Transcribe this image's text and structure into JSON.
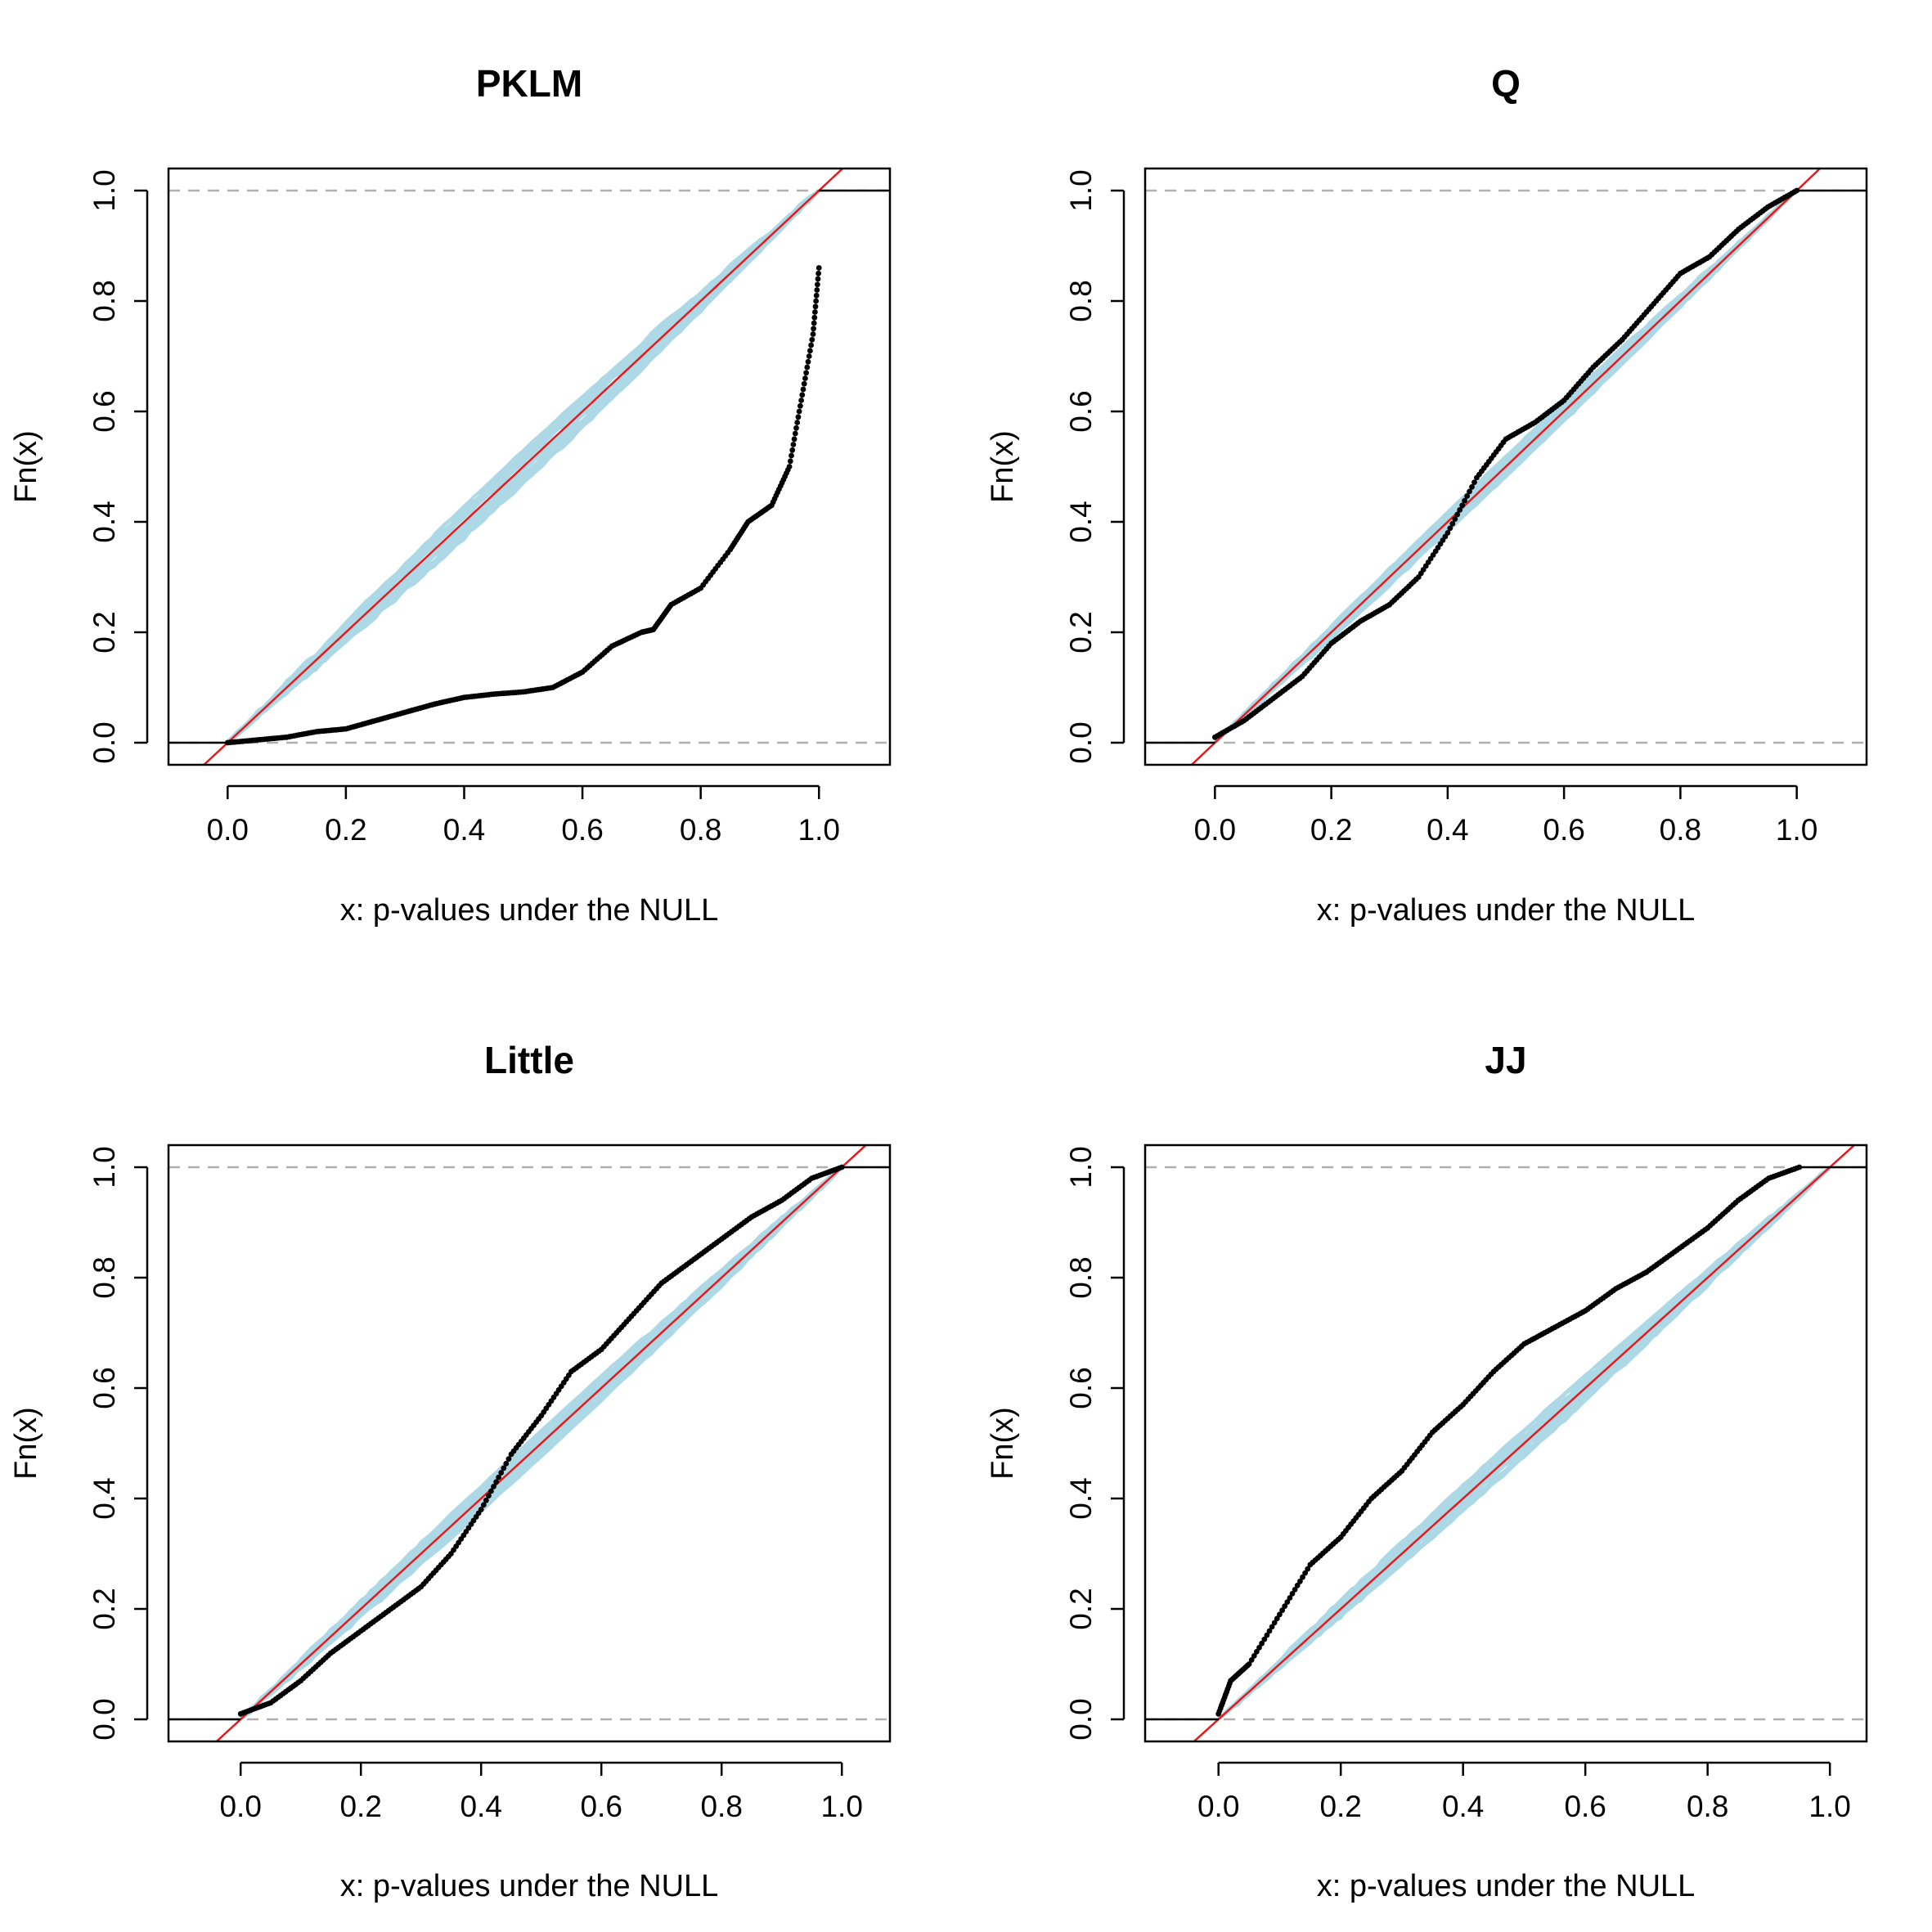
{
  "chart_data": [
    {
      "type": "scatter",
      "title": "PKLM",
      "xlabel": "x: p-values under the NULL",
      "ylabel": "Fn(x)",
      "xlim": [
        -0.1,
        1.12
      ],
      "ylim": [
        -0.04,
        1.04
      ],
      "xticks": [
        "0.0",
        "0.2",
        "0.4",
        "0.6",
        "0.8",
        "1.0"
      ],
      "yticks": [
        "0.0",
        "0.2",
        "0.4",
        "0.6",
        "0.8",
        "1.0"
      ],
      "reference_lines": [
        0,
        1
      ],
      "simulated_band_deviation": 0.03,
      "observed_ecdf": [
        [
          0.0,
          0.0
        ],
        [
          0.05,
          0.005
        ],
        [
          0.1,
          0.01
        ],
        [
          0.15,
          0.02
        ],
        [
          0.2,
          0.025
        ],
        [
          0.25,
          0.04
        ],
        [
          0.3,
          0.055
        ],
        [
          0.35,
          0.07
        ],
        [
          0.4,
          0.082
        ],
        [
          0.45,
          0.088
        ],
        [
          0.5,
          0.092
        ],
        [
          0.55,
          0.1
        ],
        [
          0.6,
          0.128
        ],
        [
          0.65,
          0.175
        ],
        [
          0.7,
          0.2
        ],
        [
          0.72,
          0.205
        ],
        [
          0.75,
          0.25
        ],
        [
          0.8,
          0.28
        ],
        [
          0.85,
          0.35
        ],
        [
          0.88,
          0.4
        ],
        [
          0.92,
          0.43
        ],
        [
          0.95,
          0.5
        ],
        [
          0.97,
          0.62
        ],
        [
          0.99,
          0.74
        ],
        [
          1.0,
          0.86
        ]
      ],
      "grid": false
    },
    {
      "type": "scatter",
      "title": "Q",
      "xlabel": "x: p-values under the NULL",
      "ylabel": "Fn(x)",
      "xlim": [
        -0.12,
        1.12
      ],
      "ylim": [
        -0.04,
        1.04
      ],
      "xticks": [
        "0.0",
        "0.2",
        "0.4",
        "0.6",
        "0.8",
        "1.0"
      ],
      "yticks": [
        "0.0",
        "0.2",
        "0.4",
        "0.6",
        "0.8",
        "1.0"
      ],
      "reference_lines": [
        0,
        1
      ],
      "simulated_band_deviation": 0.02,
      "observed_ecdf": [
        [
          0.0,
          0.01
        ],
        [
          0.05,
          0.04
        ],
        [
          0.1,
          0.08
        ],
        [
          0.15,
          0.12
        ],
        [
          0.2,
          0.18
        ],
        [
          0.25,
          0.22
        ],
        [
          0.3,
          0.25
        ],
        [
          0.35,
          0.3
        ],
        [
          0.4,
          0.38
        ],
        [
          0.45,
          0.48
        ],
        [
          0.5,
          0.55
        ],
        [
          0.55,
          0.58
        ],
        [
          0.6,
          0.62
        ],
        [
          0.65,
          0.68
        ],
        [
          0.7,
          0.73
        ],
        [
          0.75,
          0.79
        ],
        [
          0.8,
          0.85
        ],
        [
          0.85,
          0.88
        ],
        [
          0.9,
          0.93
        ],
        [
          0.95,
          0.97
        ],
        [
          1.0,
          1.0
        ]
      ],
      "grid": false
    },
    {
      "type": "scatter",
      "title": "Little",
      "xlabel": "x: p-values under the NULL",
      "ylabel": "Fn(x)",
      "xlim": [
        -0.12,
        1.08
      ],
      "ylim": [
        -0.04,
        1.04
      ],
      "xticks": [
        "0.0",
        "0.2",
        "0.4",
        "0.6",
        "0.8",
        "1.0"
      ],
      "yticks": [
        "0.0",
        "0.2",
        "0.4",
        "0.6",
        "0.8",
        "1.0"
      ],
      "reference_lines": [
        0,
        1
      ],
      "simulated_band_deviation": 0.025,
      "observed_ecdf": [
        [
          0.0,
          0.01
        ],
        [
          0.05,
          0.03
        ],
        [
          0.1,
          0.07
        ],
        [
          0.15,
          0.12
        ],
        [
          0.2,
          0.16
        ],
        [
          0.25,
          0.2
        ],
        [
          0.3,
          0.24
        ],
        [
          0.35,
          0.3
        ],
        [
          0.4,
          0.38
        ],
        [
          0.45,
          0.48
        ],
        [
          0.5,
          0.55
        ],
        [
          0.55,
          0.63
        ],
        [
          0.6,
          0.67
        ],
        [
          0.65,
          0.73
        ],
        [
          0.7,
          0.79
        ],
        [
          0.75,
          0.83
        ],
        [
          0.8,
          0.87
        ],
        [
          0.85,
          0.91
        ],
        [
          0.9,
          0.94
        ],
        [
          0.95,
          0.98
        ],
        [
          1.0,
          1.0
        ]
      ],
      "grid": false
    },
    {
      "type": "scatter",
      "title": "JJ",
      "xlabel": "x: p-values under the NULL",
      "ylabel": "Fn(x)",
      "xlim": [
        -0.12,
        1.06
      ],
      "ylim": [
        -0.04,
        1.04
      ],
      "xticks": [
        "0.0",
        "0.2",
        "0.4",
        "0.6",
        "0.8",
        "1.0"
      ],
      "yticks": [
        "0.0",
        "0.2",
        "0.4",
        "0.6",
        "0.8",
        "1.0"
      ],
      "reference_lines": [
        0,
        1
      ],
      "simulated_band_deviation": 0.025,
      "observed_ecdf": [
        [
          0.0,
          0.01
        ],
        [
          0.02,
          0.07
        ],
        [
          0.05,
          0.1
        ],
        [
          0.1,
          0.19
        ],
        [
          0.15,
          0.28
        ],
        [
          0.2,
          0.33
        ],
        [
          0.25,
          0.4
        ],
        [
          0.3,
          0.45
        ],
        [
          0.35,
          0.52
        ],
        [
          0.4,
          0.57
        ],
        [
          0.45,
          0.63
        ],
        [
          0.5,
          0.68
        ],
        [
          0.55,
          0.71
        ],
        [
          0.6,
          0.74
        ],
        [
          0.65,
          0.78
        ],
        [
          0.7,
          0.81
        ],
        [
          0.75,
          0.85
        ],
        [
          0.8,
          0.89
        ],
        [
          0.85,
          0.94
        ],
        [
          0.9,
          0.98
        ],
        [
          0.95,
          1.0
        ]
      ],
      "grid": false
    }
  ],
  "colors": {
    "simulated": "#add8e6",
    "reference_diagonal": "#e41a1c",
    "observed": "#000000",
    "reference_hlines": "#b0b0b0"
  }
}
